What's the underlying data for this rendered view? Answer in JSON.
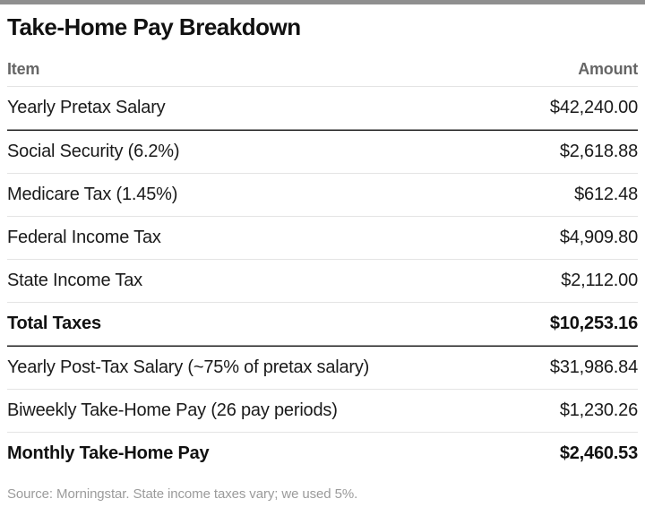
{
  "page": {
    "title": "Take-Home Pay Breakdown",
    "source_note": "Source: Morningstar. State income taxes vary; we used 5%."
  },
  "table": {
    "columns": {
      "item": "Item",
      "amount": "Amount"
    },
    "rows": [
      {
        "item": "Yearly Pretax Salary",
        "amount": "$42,240.00",
        "bold": false,
        "divider_after": "dark"
      },
      {
        "item": "Social Security (6.2%)",
        "amount": "$2,618.88",
        "bold": false,
        "divider_after": "light"
      },
      {
        "item": "Medicare Tax (1.45%)",
        "amount": "$612.48",
        "bold": false,
        "divider_after": "light"
      },
      {
        "item": "Federal Income Tax",
        "amount": "$4,909.80",
        "bold": false,
        "divider_after": "light"
      },
      {
        "item": "State Income Tax",
        "amount": "$2,112.00",
        "bold": false,
        "divider_after": "light"
      },
      {
        "item": "Total Taxes",
        "amount": "$10,253.16",
        "bold": true,
        "divider_after": "dark"
      },
      {
        "item": "Yearly Post-Tax Salary (~75% of pretax salary)",
        "amount": "$31,986.84",
        "bold": false,
        "divider_after": "light"
      },
      {
        "item": "Biweekly Take-Home Pay (26 pay periods)",
        "amount": "$1,230.26",
        "bold": false,
        "divider_after": "light"
      },
      {
        "item": "Monthly Take-Home Pay",
        "amount": "$2,460.53",
        "bold": true,
        "divider_after": "none"
      }
    ]
  },
  "chart_data": {
    "type": "table",
    "title": "Take-Home Pay Breakdown",
    "columns": [
      "Item",
      "Amount"
    ],
    "rows": [
      [
        "Yearly Pretax Salary",
        42240.0
      ],
      [
        "Social Security (6.2%)",
        2618.88
      ],
      [
        "Medicare Tax (1.45%)",
        612.48
      ],
      [
        "Federal Income Tax",
        4909.8
      ],
      [
        "State Income Tax",
        2112.0
      ],
      [
        "Total Taxes",
        10253.16
      ],
      [
        "Yearly Post-Tax Salary (~75% of pretax salary)",
        31986.84
      ],
      [
        "Biweekly Take-Home Pay (26 pay periods)",
        1230.26
      ],
      [
        "Monthly Take-Home Pay",
        2460.53
      ]
    ],
    "source": "Source: Morningstar. State income taxes vary; we used 5%."
  },
  "colors": {
    "top_rule": "#8f8f8f",
    "text": "#1a1a1a",
    "header_text": "#666666",
    "light_divider": "#e4e4e4",
    "dark_divider": "#1c1c1c",
    "source_text": "#9b9b9b"
  }
}
